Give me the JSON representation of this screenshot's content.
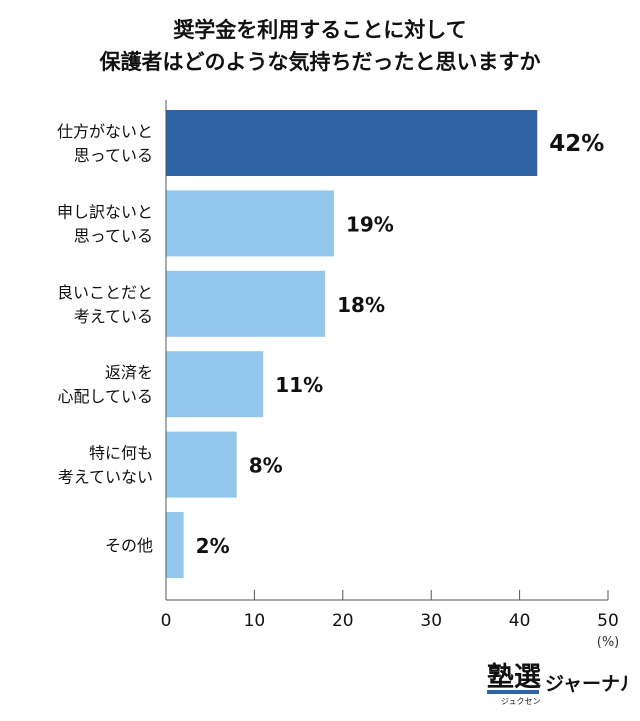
{
  "chart_data": {
    "type": "bar",
    "orientation": "horizontal",
    "title": [
      "奨学金を利用することに対して",
      "保護者はどのような気持ちだったと思いますか"
    ],
    "categories": [
      [
        "仕方がないと",
        "思っている"
      ],
      [
        "申し訳ないと",
        "思っている"
      ],
      [
        "良いことだと",
        "考えている"
      ],
      [
        "返済を",
        "心配している"
      ],
      [
        "特に何も",
        "考えていない"
      ],
      [
        "その他"
      ]
    ],
    "values": [
      42,
      19,
      18,
      11,
      8,
      2
    ],
    "data_labels": [
      "42%",
      "19%",
      "18%",
      "11%",
      "8%",
      "2%"
    ],
    "xlim": [
      0,
      50
    ],
    "xticks": [
      0,
      10,
      20,
      30,
      40,
      50
    ],
    "xunit": "(%)",
    "grid": false,
    "colors": {
      "highlight": "#2e64a6",
      "normal": "#93c8ec"
    }
  },
  "logo": {
    "main": "塾選",
    "reading": "ジュクセン",
    "suffix": "ジャーナル"
  }
}
